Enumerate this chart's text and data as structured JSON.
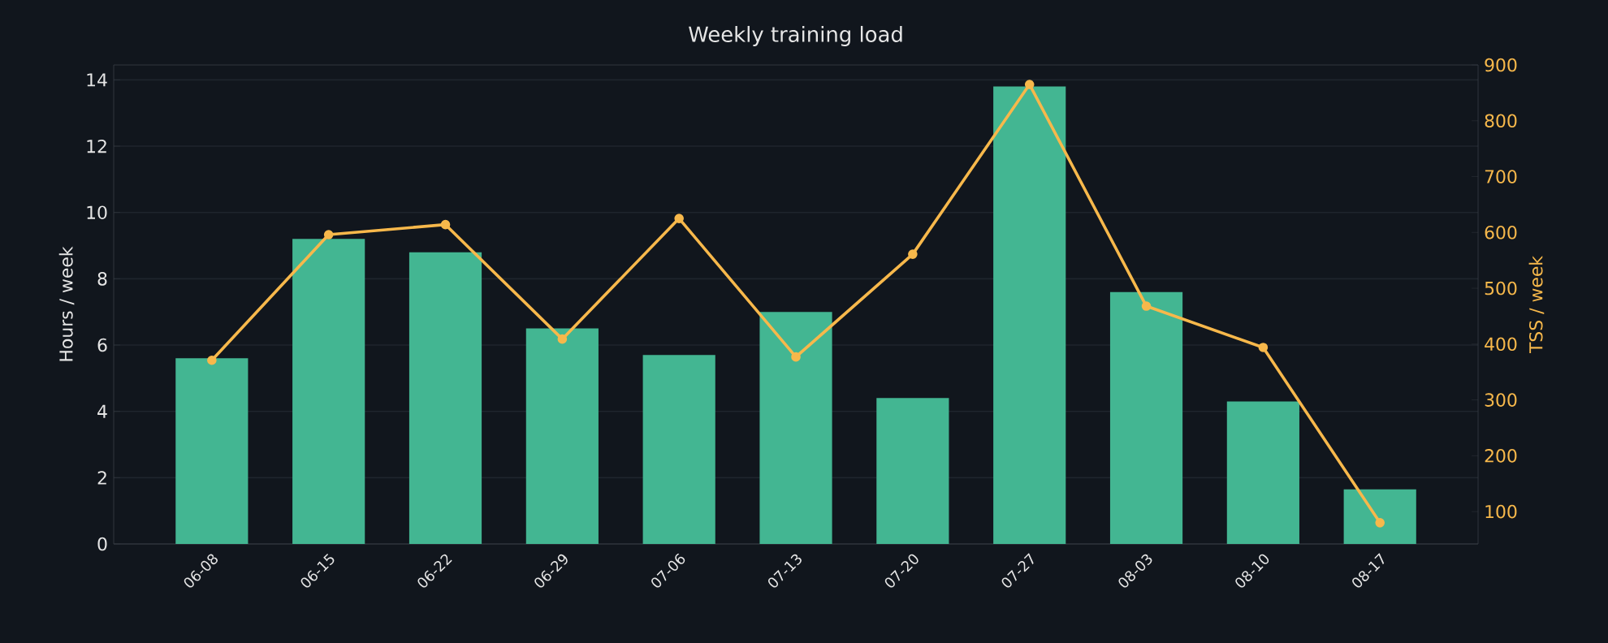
{
  "chart_data": {
    "type": "bar",
    "title": "Weekly training load",
    "ylabel": "Hours / week",
    "y2label": "TSS / week",
    "categories": [
      "06-08",
      "06-15",
      "06-22",
      "06-29",
      "07-06",
      "07-13",
      "07-20",
      "07-27",
      "08-03",
      "08-10",
      "08-17"
    ],
    "series": [
      {
        "color": "#43b692",
        "values": [
          5.6,
          9.2,
          8.8,
          6.5,
          5.7,
          7.0,
          4.4,
          13.8,
          7.6,
          4.3,
          1.65
        ]
      },
      {
        "type": "line",
        "axis": "y2",
        "color": "#f7b84b",
        "marker": "circle",
        "values": [
          371,
          596,
          614,
          409,
          625,
          377,
          561,
          865,
          468,
          394,
          80
        ]
      }
    ],
    "ylim": [
      0,
      14.45
    ],
    "yticks": [
      0,
      2,
      4,
      6,
      8,
      10,
      12,
      14
    ],
    "y2lim": [
      42,
      900
    ],
    "y2ticks": [
      100,
      200,
      300,
      400,
      500,
      600,
      700,
      800,
      900
    ],
    "grid": "y"
  }
}
